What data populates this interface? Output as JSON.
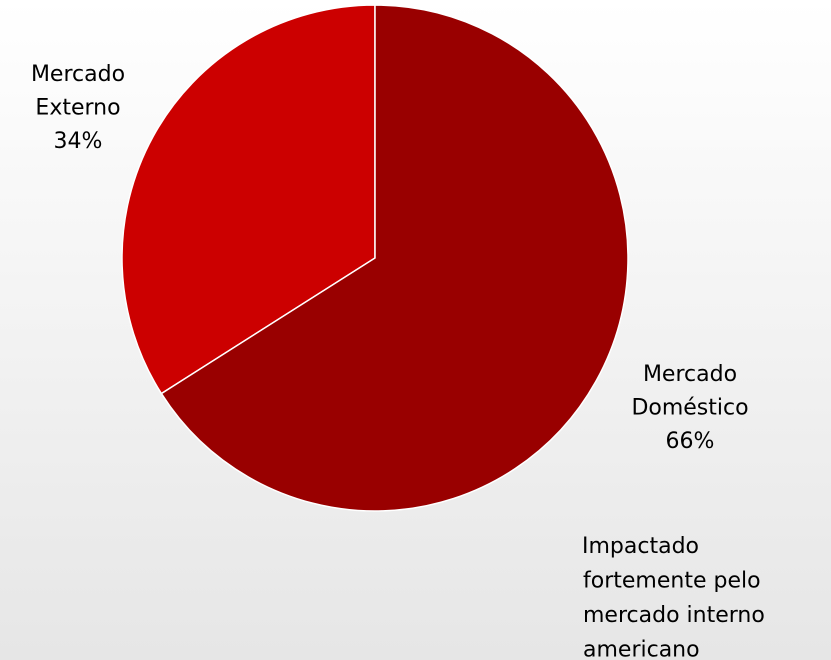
{
  "chart_data": {
    "type": "pie",
    "categories": [
      "Mercado Externo",
      "Mercado Doméstico"
    ],
    "values": [
      34,
      66
    ],
    "value_labels": [
      "34%",
      "66%"
    ],
    "colors": [
      "#cc0000",
      "#990000"
    ],
    "annotation": [
      "Impactado",
      "fortemente pelo",
      "mercado interno",
      "americano"
    ]
  }
}
